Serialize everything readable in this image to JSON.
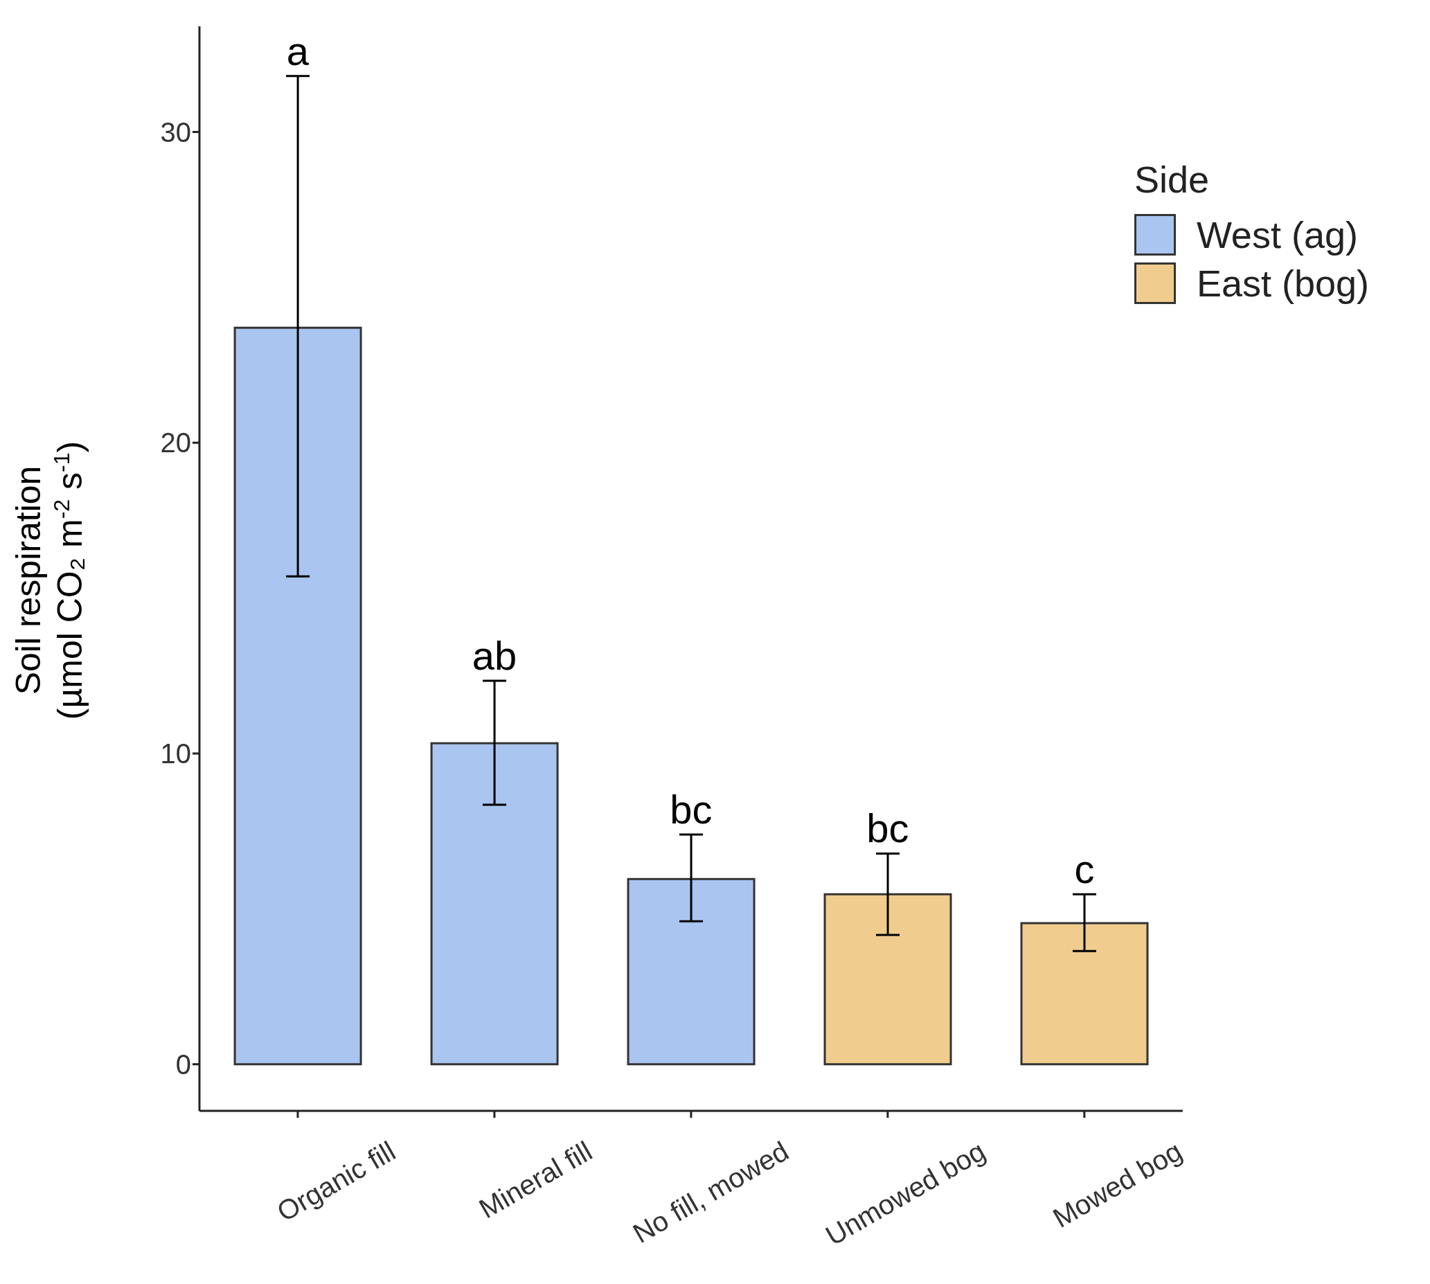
{
  "chart_data": {
    "type": "bar",
    "ylabel": "Soil respiration\n(µmol CO₂ m$^{-2}$ s$^{-1}$)",
    "legend_title": "Side",
    "categories": [
      "Organic fill",
      "Mineral fill",
      "No fill, mowed",
      "Unmowed bog",
      "Mowed bog"
    ],
    "series": [
      {
        "name": "West (ag)",
        "color": "#a9c5f0",
        "values": [
          23.7,
          10.33,
          5.96,
          null,
          null
        ],
        "errors": [
          [
            15.7,
            31.8
          ],
          [
            8.35,
            12.34
          ],
          [
            4.6,
            7.39
          ],
          null,
          null
        ]
      },
      {
        "name": "East (bog)",
        "color": "#f0cd8e",
        "values": [
          null,
          null,
          null,
          5.47,
          4.54
        ],
        "errors": [
          null,
          null,
          null,
          [
            4.16,
            6.78
          ],
          [
            3.64,
            5.47
          ]
        ]
      }
    ],
    "annotations": [
      "a",
      "ab",
      "bc",
      "bc",
      "c"
    ],
    "ylim": [
      -1.5,
      33.4
    ],
    "yticks": [
      0,
      10,
      20,
      30
    ],
    "grid": false,
    "legend": "top right"
  }
}
